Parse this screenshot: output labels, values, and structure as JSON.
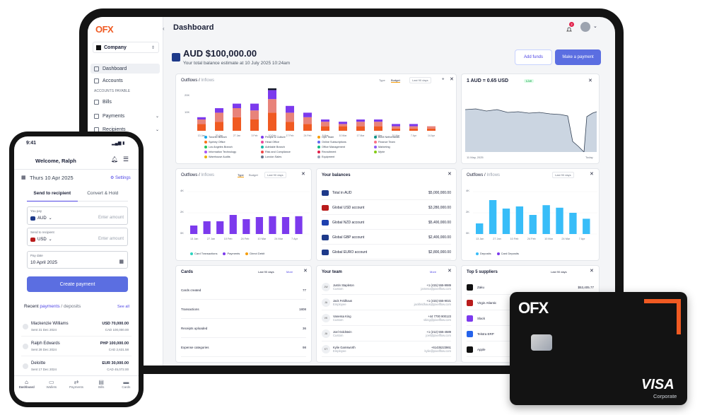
{
  "tablet": {
    "logo": "OFX",
    "company": "Company",
    "sidebar": {
      "items": [
        {
          "label": "Dashboard"
        },
        {
          "label": "Accounts"
        },
        {
          "label": "Bills"
        },
        {
          "label": "Payments"
        },
        {
          "label": "Recipients"
        }
      ],
      "section": "ACCOUNTS PAYABLE"
    },
    "header": {
      "title": "Dashboard",
      "notif_count": "2"
    },
    "balance": {
      "amount": "AUD $100,000.00",
      "subtitle": "Your total balance estimate at 10 July 2025 10:24am"
    },
    "buttons": {
      "add_funds": "Add funds",
      "make_payment": "Make a payment"
    },
    "outflows1": {
      "title_a": "Outflows",
      "title_b": "Inflows",
      "tabs": [
        "Type",
        "Budget"
      ],
      "period": "Last 90 days",
      "ticks_y": [
        "20K",
        "10K"
      ],
      "ticks_x": [
        "13 Jan",
        "20 Jan",
        "27 Jan",
        "3 Feb",
        "10 Feb",
        "17 Feb",
        "24 Feb",
        "3 Mar",
        "10 Mar",
        "17 Mar",
        "24 Mar",
        "31 Mar",
        "7 Apr",
        "14 Apr"
      ],
      "legend": [
        "Toronto Branch",
        "Sydney Office",
        "Los Angeles Branch",
        "Information Technology",
        "Warehouse Audits",
        "People & Culture",
        "Head Office",
        "Adelaide Branch",
        "Risk and Compliance",
        "London Sales",
        "Ops Team",
        "Online Subscriptions",
        "Office Management",
        "Recruitment",
        "Equipment",
        "BDM Netherlands",
        "Finance Team",
        "Marketing",
        "Myrie"
      ]
    },
    "rate": {
      "text": "1 AUD = 0.65 USD",
      "badge": "Live",
      "date_left": "11 May, 2025",
      "date_right": "Today"
    },
    "outflows2": {
      "title_a": "Outflows",
      "title_b": "Inflows",
      "tabs": [
        "Type",
        "Budget"
      ],
      "period": "Last 90 days",
      "ticks_y": [
        "4K",
        "2K",
        "0K"
      ],
      "ticks_x": [
        "13 Jan",
        "27 Jan",
        "10 Feb",
        "24 Feb",
        "10 Mar",
        "24 Mar",
        "7 Apr"
      ],
      "legend": [
        "Card Transactions",
        "Payments",
        "Direct Debit"
      ]
    },
    "balances": {
      "title": "Your balances",
      "rows": [
        {
          "name": "Total in AUD",
          "value": "$5,000,000.00"
        },
        {
          "name": "Global USD account",
          "value": "$3,280,000.00"
        },
        {
          "name": "Global NZD account",
          "value": "$5,400,000.00"
        },
        {
          "name": "Global GBP account",
          "value": "$2,400,000.00"
        },
        {
          "name": "Global EURO account",
          "value": "$2,800,000.00"
        }
      ]
    },
    "outflows3": {
      "title_a": "Outflows",
      "title_b": "Inflows",
      "period": "Last 90 days",
      "ticks_y": [
        "4K",
        "2K",
        "0K"
      ],
      "ticks_x": [
        "13 Jan",
        "27 Jan",
        "10 Feb",
        "24 Feb",
        "10 Mar",
        "24 Mar",
        "7 Apr"
      ],
      "legend": [
        "Deposits",
        "Card Deposits"
      ]
    },
    "cards": {
      "title": "Cards",
      "period": "Last 90 days",
      "more": "More",
      "rows": [
        {
          "name": "Cards created",
          "value": "77"
        },
        {
          "name": "Transactions",
          "value": "1808"
        },
        {
          "name": "Receipts uploaded",
          "value": "36"
        },
        {
          "name": "Expense categories",
          "value": "98"
        }
      ]
    },
    "team": {
      "title": "Your team",
      "more": "More",
      "rows": [
        {
          "initials": "JW",
          "name": "Justin Stapleton",
          "role": "Custom",
          "phone": "+1 (415) 555-9989",
          "email": "jameso@pixelflow.com"
        },
        {
          "initials": "JA",
          "name": "Jack Feldhaus",
          "role": "Employee",
          "phone": "+1 (415) 555-9021",
          "email": "jackfeldhaus@pixelflow.com"
        },
        {
          "initials": "VK",
          "name": "Vanessa King",
          "role": "Custom",
          "phone": "+44 7700 900123",
          "email": "vking@pixelflow.com"
        },
        {
          "initials": "JA",
          "name": "Joel Goldstein",
          "role": "Custom",
          "phone": "+1 (212) 555-4589",
          "email": "joel@pixelflow.com"
        },
        {
          "initials": "KT",
          "name": "Kylie Gamsworth",
          "role": "Employee",
          "phone": "+61435223861",
          "email": "kylie@pixelflow.com"
        }
      ]
    },
    "suppliers": {
      "title": "Top 5 suppliers",
      "period": "Last 90 days",
      "rows": [
        {
          "name": "Zaku",
          "value": "$53,405.77"
        },
        {
          "name": "Virgin Atlantic",
          "value": ""
        },
        {
          "name": "Slack",
          "value": ""
        },
        {
          "name": "Telstra ERP",
          "value": ""
        },
        {
          "name": "Apple",
          "value": ""
        }
      ]
    }
  },
  "phone": {
    "time": "9:41",
    "welcome": "Welcome, Ralph",
    "date": "Thurs 10 Apr 2025",
    "settings": "Settings",
    "tabs": [
      "Send to recipient",
      "Convert & Hold"
    ],
    "you_pay_label": "You pay",
    "you_pay_currency": "AUD",
    "you_pay_placeholder": "Enter amount",
    "send_label": "Send to recipient",
    "send_currency": "USD",
    "send_placeholder": "Enter amount",
    "pay_date_label": "Pay date",
    "pay_date": "10 April 2025",
    "create_button": "Create payment",
    "recent_a": "Recent ",
    "recent_b": "payments",
    "recent_c": " / deposits",
    "see_all": "See all",
    "payments": [
      {
        "name": "Mackenzie Williams",
        "date": "Sent 31 Dec 2024",
        "amount": "USD 70,000.00",
        "sub": "CAD 100,000.00"
      },
      {
        "name": "Ralph Edwards",
        "date": "Sent 28 Dec 2024",
        "amount": "PHP 100,000.00",
        "sub": "CAD 2,631.58"
      },
      {
        "name": "Deloitte",
        "date": "Sent 17 Dec 2024",
        "amount": "EUR 30,000.00",
        "sub": "CAD 45,072.00"
      }
    ],
    "nav": [
      "Dashboard",
      "Wallets",
      "Payments",
      "Bills",
      "Cards"
    ]
  },
  "visa_card": {
    "logo": "OFX",
    "brand": "VISA",
    "tier": "Corporate"
  },
  "colors": {
    "accent": "#5b6ee1",
    "brand": "#f05a22",
    "purple": "#7c3aed",
    "teal": "#38bdf8"
  }
}
